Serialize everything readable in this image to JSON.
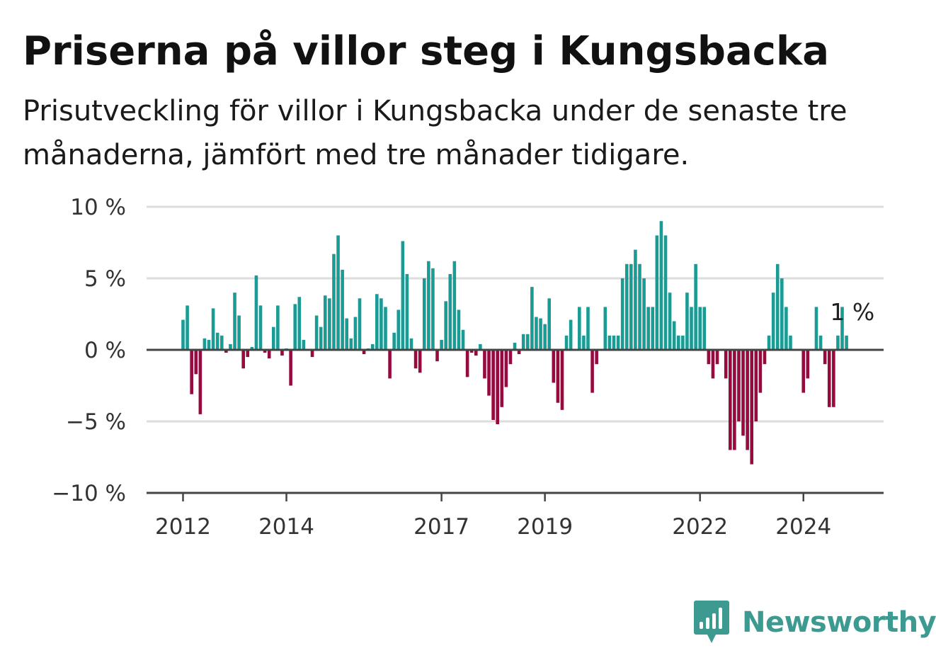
{
  "title": "Priserna på villor steg i Kungsbacka",
  "subtitle": "Prisutveckling för villor i Kungsbacka under de senaste tre månaderna, jämfört med tre månader tidigare.",
  "brand": "Newsworthy",
  "colors": {
    "positive": "#1a9c95",
    "negative": "#970a3f",
    "grid": "#dddddd",
    "zero_line": "#444444",
    "brand": "#3c9a91"
  },
  "chart_data": {
    "type": "bar",
    "ylim": [
      -10,
      10
    ],
    "y_ticks": [
      10,
      5,
      0,
      -5,
      -10
    ],
    "y_tick_labels": [
      "10 %",
      "5 %",
      "0 %",
      "−5 %",
      "−10 %"
    ],
    "x_tick_labels": [
      {
        "label": "2012",
        "index": 0
      },
      {
        "label": "2014",
        "index": 24
      },
      {
        "label": "2017",
        "index": 60
      },
      {
        "label": "2019",
        "index": 84
      },
      {
        "label": "2022",
        "index": 120
      },
      {
        "label": "2024",
        "index": 144
      }
    ],
    "grid": true,
    "annotation": {
      "text": "1 %",
      "index": 156
    },
    "values": [
      2.1,
      3.1,
      -3.1,
      -1.7,
      -4.5,
      0.8,
      0.7,
      2.9,
      1.2,
      1.0,
      -0.2,
      0.4,
      4.0,
      2.4,
      -1.3,
      -0.5,
      0.2,
      5.2,
      3.1,
      -0.2,
      -0.6,
      1.6,
      3.1,
      -0.4,
      0.1,
      -2.5,
      3.2,
      3.7,
      0.7,
      0.0,
      -0.5,
      2.4,
      1.6,
      3.8,
      3.6,
      6.7,
      8.0,
      5.6,
      2.2,
      0.8,
      2.3,
      3.6,
      -0.3,
      0.1,
      0.4,
      3.9,
      3.6,
      3.0,
      -2.0,
      1.2,
      2.8,
      7.6,
      5.3,
      0.8,
      -1.3,
      -1.6,
      5.0,
      6.2,
      5.7,
      -0.8,
      0.7,
      3.4,
      5.3,
      6.2,
      2.8,
      1.4,
      -1.9,
      -0.2,
      -0.4,
      0.4,
      -2.0,
      -3.2,
      -4.9,
      -5.2,
      -4.0,
      -2.6,
      -1.0,
      0.5,
      -0.3,
      1.1,
      1.1,
      4.4,
      2.3,
      2.2,
      1.8,
      3.6,
      -2.3,
      -3.7,
      -4.2,
      1.0,
      2.1,
      0.0,
      3.0,
      1.0,
      3.0,
      -3.0,
      -1.0,
      0.0,
      3.0,
      1.0,
      1.0,
      1.0,
      5.0,
      6.0,
      6.0,
      7.0,
      6.0,
      5.0,
      3.0,
      3.0,
      8.0,
      9.0,
      8.0,
      4.0,
      2.0,
      1.0,
      1.0,
      4.0,
      3.0,
      6.0,
      3.0,
      3.0,
      -1.0,
      -2.0,
      -1.0,
      0.0,
      -2.0,
      -7.0,
      -7.0,
      -5.0,
      -6.0,
      -7.0,
      -8.0,
      -5.0,
      -3.0,
      -1.0,
      1.0,
      4.0,
      6.0,
      5.0,
      3.0,
      1.0,
      0.0,
      0.0,
      -3.0,
      -2.0,
      0.0,
      3.0,
      1.0,
      -1.0,
      -4.0,
      -4.0,
      1.0,
      3.0,
      1.0
    ]
  }
}
